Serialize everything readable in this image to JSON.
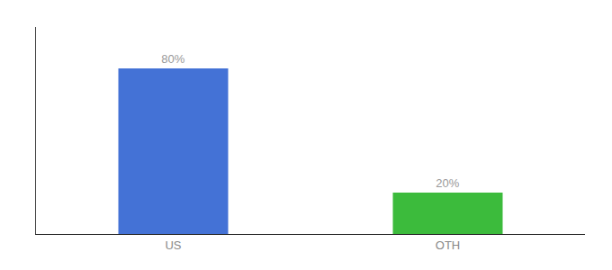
{
  "chart_data": {
    "type": "bar",
    "categories": [
      "US",
      "OTH"
    ],
    "values": [
      80,
      20
    ],
    "value_labels": [
      "80%",
      "20%"
    ],
    "colors": [
      "#4472D6",
      "#3CBB3C"
    ],
    "data_labels": true,
    "ylim": [
      0,
      100
    ],
    "tick_labels": "x",
    "grid": false
  }
}
